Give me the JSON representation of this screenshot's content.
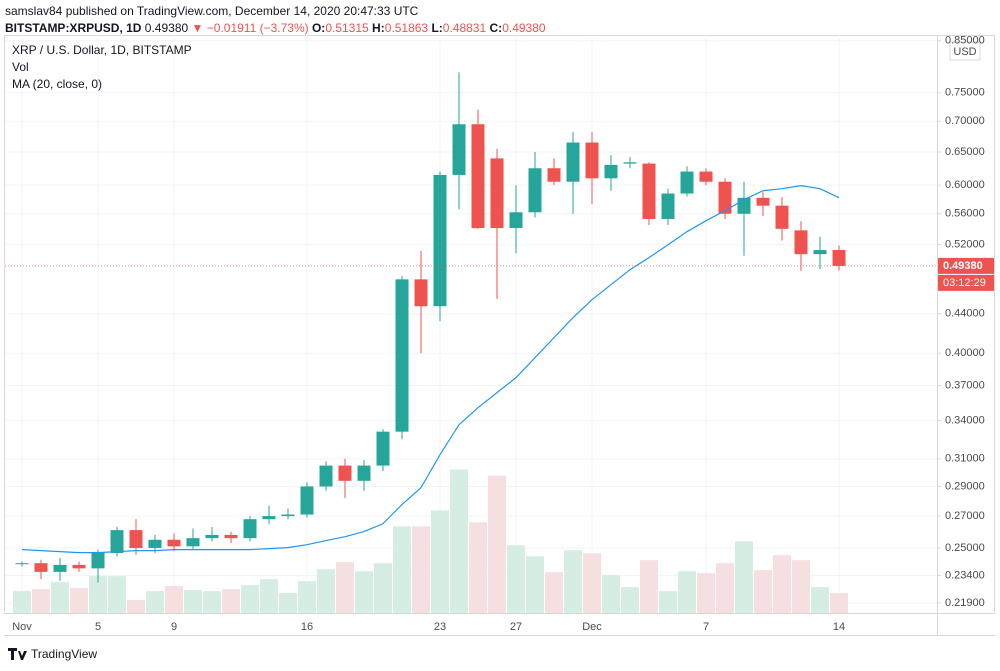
{
  "header": {
    "author_line": "samslav84 published on TradingView.com, December 14, 2020 20:47:33 UTC",
    "symbol": "BITSTAMP:XRPUSD, 1D",
    "price": "0.49380",
    "arrow": "▼",
    "change": "−0.01911 (−3.73%)",
    "ohlc": [
      {
        "label": "O:",
        "value": "0.51315"
      },
      {
        "label": "H:",
        "value": "0.51863"
      },
      {
        "label": "L:",
        "value": "0.48831"
      },
      {
        "label": "C:",
        "value": "0.49380"
      }
    ]
  },
  "chart_data": {
    "type": "candlestick",
    "title": "XRP / U.S. Dollar, 1D, BITSTAMP",
    "currency": "USD",
    "categories": [
      "Nov",
      null,
      null,
      null,
      "5",
      null,
      null,
      null,
      "9",
      null,
      null,
      null,
      null,
      null,
      null,
      "16",
      null,
      null,
      null,
      null,
      null,
      null,
      "23",
      null,
      null,
      null,
      "27",
      null,
      null,
      null,
      "Dec",
      null,
      null,
      null,
      null,
      null,
      "7",
      null,
      null,
      null,
      null,
      null,
      null,
      "14"
    ],
    "open": [
      0.241,
      0.241,
      0.236,
      0.24,
      0.238,
      0.247,
      0.261,
      0.25,
      0.255,
      0.251,
      0.256,
      0.258,
      0.256,
      0.268,
      0.27,
      0.271,
      0.29,
      0.305,
      0.294,
      0.305,
      0.331,
      0.478,
      0.448,
      0.615,
      0.695,
      0.64,
      0.541,
      0.562,
      0.625,
      0.605,
      0.665,
      0.61,
      0.632,
      0.632,
      0.553,
      0.588,
      0.62,
      0.605,
      0.56,
      0.582,
      0.571,
      0.538,
      0.508,
      0.51315
    ],
    "high": [
      0.242,
      0.243,
      0.244,
      0.242,
      0.249,
      0.263,
      0.268,
      0.258,
      0.259,
      0.262,
      0.263,
      0.26,
      0.27,
      0.277,
      0.275,
      0.293,
      0.308,
      0.31,
      0.309,
      0.333,
      0.482,
      0.512,
      0.62,
      0.788,
      0.72,
      0.655,
      0.6,
      0.65,
      0.64,
      0.682,
      0.682,
      0.645,
      0.642,
      0.634,
      0.595,
      0.628,
      0.625,
      0.61,
      0.605,
      0.59,
      0.583,
      0.55,
      0.53,
      0.51863
    ],
    "low": [
      0.239,
      0.232,
      0.231,
      0.236,
      0.23,
      0.245,
      0.246,
      0.247,
      0.248,
      0.249,
      0.254,
      0.253,
      0.254,
      0.265,
      0.268,
      0.269,
      0.287,
      0.282,
      0.287,
      0.301,
      0.325,
      0.4,
      0.432,
      0.566,
      0.54,
      0.456,
      0.509,
      0.555,
      0.6,
      0.56,
      0.573,
      0.592,
      0.625,
      0.545,
      0.545,
      0.584,
      0.6,
      0.553,
      0.506,
      0.557,
      0.525,
      0.488,
      0.49,
      0.48831
    ],
    "close": [
      0.241,
      0.236,
      0.24,
      0.238,
      0.247,
      0.261,
      0.25,
      0.255,
      0.251,
      0.256,
      0.258,
      0.256,
      0.268,
      0.27,
      0.271,
      0.29,
      0.305,
      0.294,
      0.305,
      0.331,
      0.478,
      0.448,
      0.615,
      0.695,
      0.541,
      0.541,
      0.562,
      0.625,
      0.605,
      0.665,
      0.61,
      0.63,
      0.634,
      0.553,
      0.588,
      0.62,
      0.605,
      0.56,
      0.582,
      0.571,
      0.54,
      0.508,
      0.513,
      0.4938
    ],
    "up_color": "#26a69a",
    "down_color": "#ef5350",
    "ma": {
      "name": "MA (20, close, 0)",
      "color": "#2196f3",
      "values": [
        0.249,
        0.2484,
        0.2478,
        0.2472,
        0.2472,
        0.2478,
        0.2484,
        0.2484,
        0.249,
        0.249,
        0.249,
        0.249,
        0.249,
        0.2496,
        0.2502,
        0.252,
        0.2545,
        0.2569,
        0.2601,
        0.2651,
        0.2776,
        0.2892,
        0.3131,
        0.3366,
        0.3507,
        0.3637,
        0.3771,
        0.3957,
        0.4153,
        0.4358,
        0.4551,
        0.4719,
        0.4893,
        0.5037,
        0.5197,
        0.5363,
        0.5507,
        0.5642,
        0.5793,
        0.592,
        0.5949,
        0.5993,
        0.5949,
        0.5821
      ]
    },
    "volume": {
      "name": "Vol",
      "up_color": "#d6ede3",
      "down_color": "#f6dfe1",
      "ylim": [
        0,
        580
      ],
      "values": [
        22,
        24,
        31,
        25,
        37,
        37,
        13,
        22,
        27,
        23,
        22,
        24,
        28,
        34,
        20,
        32,
        44,
        51,
        42,
        50,
        87,
        87,
        103,
        144,
        91,
        138,
        68,
        57,
        41,
        63,
        60,
        38,
        26,
        53,
        22,
        42,
        40,
        50,
        72,
        43,
        58,
        53,
        26,
        20
      ]
    },
    "ylim": [
      0.2137,
      0.862
    ],
    "log_scale": true,
    "grid": true,
    "yticks": [
      {
        "value": 0.85,
        "label": "0.85000"
      },
      {
        "value": 0.75,
        "label": "0.75000"
      },
      {
        "value": 0.7,
        "label": "0.70000"
      },
      {
        "value": 0.65,
        "label": "0.65000"
      },
      {
        "value": 0.6,
        "label": "0.60000"
      },
      {
        "value": 0.56,
        "label": "0.56000"
      },
      {
        "value": 0.52,
        "label": "0.52000"
      },
      {
        "value": 0.44,
        "label": "0.44000"
      },
      {
        "value": 0.4,
        "label": "0.40000"
      },
      {
        "value": 0.37,
        "label": "0.37000"
      },
      {
        "value": 0.34,
        "label": "0.34000"
      },
      {
        "value": 0.31,
        "label": "0.31000"
      },
      {
        "value": 0.29,
        "label": "0.29000"
      },
      {
        "value": 0.27,
        "label": "0.27000"
      },
      {
        "value": 0.25,
        "label": "0.25000"
      },
      {
        "value": 0.234,
        "label": "0.23400"
      },
      {
        "value": 0.219,
        "label": "0.21900"
      }
    ],
    "last_price": {
      "value": 0.4938,
      "label": "0.49380"
    },
    "countdown": "03:12:29"
  },
  "footer": {
    "brand": "TradingView"
  }
}
